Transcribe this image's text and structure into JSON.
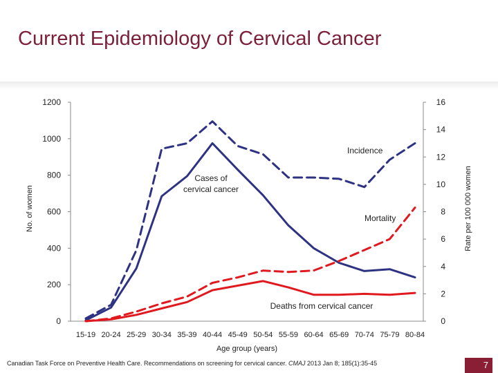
{
  "slide": {
    "title": "Current Epidemiology of Cervical Cancer",
    "page_number": "7",
    "footer_pre": "Canadian Task Force on Preventive Health Care. Recommendations on screening for cervical cancer. ",
    "footer_journal": "CMAJ",
    "footer_post": " 2013 Jan 8; 185(1):35-45"
  },
  "colors": {
    "title": "#7b1f3a",
    "blue": "#2e3282",
    "red": "#e0191f",
    "page_badge": "#8a1e35"
  },
  "chart_data": {
    "type": "line",
    "xlabel": "Age group (years)",
    "ylabel": "No. of women",
    "y2label": "Rate per 100 000 women",
    "ylim": [
      0,
      1200
    ],
    "y2lim": [
      0,
      16
    ],
    "yticks": [
      "0",
      "200",
      "400",
      "600",
      "800",
      "1000",
      "1200"
    ],
    "y2ticks": [
      "0",
      "2",
      "4",
      "6",
      "8",
      "10",
      "12",
      "14",
      "16"
    ],
    "categories": [
      "15-19",
      "20-24",
      "25-29",
      "30-34",
      "35-39",
      "40-44",
      "45-49",
      "50-54",
      "55-59",
      "60-64",
      "65-69",
      "70-74",
      "75-79",
      "80-84"
    ],
    "series": [
      {
        "axis": "left",
        "color": "#2e3282",
        "style": "solid",
        "values": [
          5,
          75,
          290,
          685,
          795,
          975,
          830,
          690,
          525,
          400,
          320,
          275,
          285,
          240
        ]
      },
      {
        "axis": "right",
        "color": "#2e3282",
        "style": "dashed",
        "values": [
          0.2,
          1.2,
          5.2,
          12.6,
          13.0,
          14.6,
          12.8,
          12.2,
          10.5,
          10.5,
          10.4,
          9.8,
          11.8,
          13.0
        ]
      },
      {
        "axis": "left",
        "color": "#e0191f",
        "style": "solid",
        "values": [
          0,
          10,
          35,
          70,
          105,
          170,
          195,
          220,
          185,
          145,
          145,
          150,
          145,
          155
        ]
      },
      {
        "axis": "right",
        "color": "#e0191f",
        "style": "dashed",
        "values": [
          0,
          0.2,
          0.7,
          1.3,
          1.8,
          2.8,
          3.2,
          3.7,
          3.6,
          3.7,
          4.4,
          5.2,
          6.0,
          8.3
        ]
      }
    ],
    "annotations": {
      "incidence": "Incidence",
      "cases_line1": "Cases of",
      "cases_line2": "cervical cancer",
      "mortality": "Mortality",
      "deaths": "Deaths from cervical cancer"
    }
  }
}
